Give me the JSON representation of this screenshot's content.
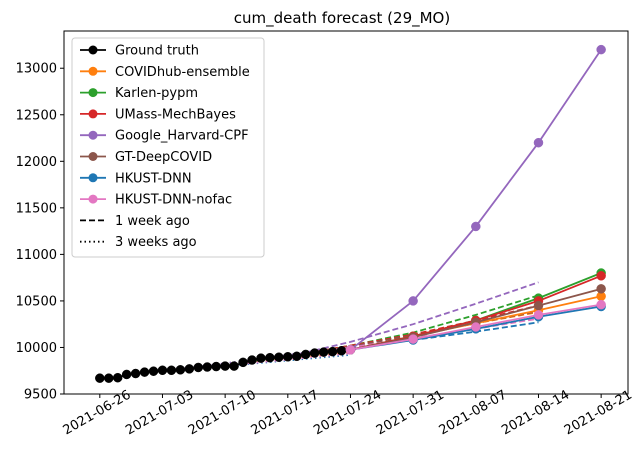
{
  "chart_data": {
    "type": "line",
    "title": "cum_death forecast (29_MO)",
    "xlabel": "",
    "ylabel": "",
    "ylim": [
      9500,
      13400
    ],
    "xlim": [
      "2021-06-22",
      "2021-08-24"
    ],
    "x_ticks": [
      "2021-06-26",
      "2021-07-03",
      "2021-07-10",
      "2021-07-17",
      "2021-07-24",
      "2021-07-31",
      "2021-08-07",
      "2021-08-14",
      "2021-08-21"
    ],
    "y_ticks": [
      9500,
      10000,
      10500,
      11000,
      11500,
      12000,
      12500,
      13000
    ],
    "grid": false,
    "legend_position": "top-left",
    "ground_truth": {
      "name": "Ground truth",
      "color": "#000000",
      "x": [
        "2021-06-26",
        "2021-06-27",
        "2021-06-28",
        "2021-06-29",
        "2021-06-30",
        "2021-07-01",
        "2021-07-02",
        "2021-07-03",
        "2021-07-04",
        "2021-07-05",
        "2021-07-06",
        "2021-07-07",
        "2021-07-08",
        "2021-07-09",
        "2021-07-10",
        "2021-07-11",
        "2021-07-12",
        "2021-07-13",
        "2021-07-14",
        "2021-07-15",
        "2021-07-16",
        "2021-07-17",
        "2021-07-18",
        "2021-07-19",
        "2021-07-20",
        "2021-07-21",
        "2021-07-22",
        "2021-07-23",
        "2021-07-24"
      ],
      "y": [
        9670,
        9670,
        9675,
        9710,
        9720,
        9735,
        9745,
        9755,
        9755,
        9760,
        9770,
        9785,
        9790,
        9795,
        9800,
        9800,
        9840,
        9865,
        9885,
        9890,
        9895,
        9900,
        9905,
        9925,
        9940,
        9950,
        9955,
        9965,
        9975
      ]
    },
    "series": [
      {
        "name": "COVIDhub-ensemble",
        "color": "#ff7f0e",
        "x": [
          "2021-07-24",
          "2021-07-31",
          "2021-08-07",
          "2021-08-14",
          "2021-08-21"
        ],
        "y": [
          9975,
          10120,
          10260,
          10400,
          10550
        ],
        "one_week": {
          "x": [
            "2021-07-17",
            "2021-07-24",
            "2021-07-31",
            "2021-08-07",
            "2021-08-14"
          ],
          "y": [
            9900,
            10020,
            10140,
            10260,
            10380
          ]
        }
      },
      {
        "name": "Karlen-pypm",
        "color": "#2ca02c",
        "x": [
          "2021-07-24",
          "2021-07-31",
          "2021-08-07",
          "2021-08-14",
          "2021-08-21"
        ],
        "y": [
          9975,
          10120,
          10290,
          10530,
          10800
        ],
        "one_week": {
          "x": [
            "2021-07-17",
            "2021-07-24",
            "2021-07-31",
            "2021-08-07",
            "2021-08-14"
          ],
          "y": [
            9900,
            10020,
            10160,
            10350,
            10560
          ]
        }
      },
      {
        "name": "UMass-MechBayes",
        "color": "#d62728",
        "x": [
          "2021-07-24",
          "2021-07-31",
          "2021-08-07",
          "2021-08-14",
          "2021-08-21"
        ],
        "y": [
          9975,
          10120,
          10290,
          10500,
          10770
        ],
        "one_week": {
          "x": [
            "2021-07-17",
            "2021-07-24",
            "2021-07-31",
            "2021-08-07",
            "2021-08-14"
          ],
          "y": [
            9900,
            10020,
            10140,
            10290,
            10450
          ]
        }
      },
      {
        "name": "Google_Harvard-CPF",
        "color": "#9467bd",
        "x": [
          "2021-07-24",
          "2021-07-31",
          "2021-08-07",
          "2021-08-14",
          "2021-08-21"
        ],
        "y": [
          9975,
          10500,
          11300,
          12200,
          13200
        ],
        "one_week": {
          "x": [
            "2021-07-17",
            "2021-07-24",
            "2021-07-31",
            "2021-08-07",
            "2021-08-14"
          ],
          "y": [
            9900,
            10060,
            10250,
            10470,
            10700
          ]
        }
      },
      {
        "name": "GT-DeepCOVID",
        "color": "#8c564b",
        "x": [
          "2021-07-24",
          "2021-07-31",
          "2021-08-07",
          "2021-08-14",
          "2021-08-21"
        ],
        "y": [
          9975,
          10110,
          10270,
          10450,
          10630
        ],
        "one_week": {
          "x": [
            "2021-07-17",
            "2021-07-24",
            "2021-07-31",
            "2021-08-07",
            "2021-08-14"
          ],
          "y": [
            9900,
            10010,
            10130,
            10260,
            10390
          ]
        }
      },
      {
        "name": "HKUST-DNN",
        "color": "#1f77b4",
        "x": [
          "2021-07-24",
          "2021-07-31",
          "2021-08-07",
          "2021-08-14",
          "2021-08-21"
        ],
        "y": [
          9975,
          10080,
          10200,
          10330,
          10440
        ],
        "one_week": {
          "x": [
            "2021-07-17",
            "2021-07-24",
            "2021-07-31",
            "2021-08-07",
            "2021-08-14"
          ],
          "y": [
            9900,
            9990,
            10080,
            10170,
            10270
          ]
        }
      },
      {
        "name": "HKUST-DNN-nofac",
        "color": "#e377c2",
        "x": [
          "2021-07-24",
          "2021-07-31",
          "2021-08-07",
          "2021-08-14",
          "2021-08-21"
        ],
        "y": [
          9975,
          10090,
          10220,
          10350,
          10460
        ],
        "one_week": {
          "x": [
            "2021-07-17",
            "2021-07-24",
            "2021-07-31",
            "2021-08-07",
            "2021-08-14"
          ],
          "y": [
            9900,
            10000,
            10100,
            10200,
            10310
          ]
        }
      }
    ],
    "three_week": [
      {
        "color": "#ff7f0e",
        "x": [
          "2021-07-03",
          "2021-07-10",
          "2021-07-17",
          "2021-07-24"
        ],
        "y": [
          9755,
          9810,
          9880,
          9950
        ]
      },
      {
        "color": "#2ca02c",
        "x": [
          "2021-07-03",
          "2021-07-10",
          "2021-07-17",
          "2021-07-24"
        ],
        "y": [
          9755,
          9820,
          9900,
          9980
        ]
      },
      {
        "color": "#9467bd",
        "x": [
          "2021-07-03",
          "2021-07-10",
          "2021-07-17",
          "2021-07-24"
        ],
        "y": [
          9755,
          9830,
          9920,
          10010
        ]
      },
      {
        "color": "#1f77b4",
        "x": [
          "2021-07-03",
          "2021-07-10",
          "2021-07-17",
          "2021-07-24"
        ],
        "y": [
          9755,
          9800,
          9860,
          9920
        ]
      },
      {
        "color": "#e377c2",
        "x": [
          "2021-07-03",
          "2021-07-10",
          "2021-07-17",
          "2021-07-24"
        ],
        "y": [
          9755,
          9805,
          9870,
          9935
        ]
      }
    ],
    "legend_extra": [
      {
        "label": "1 week ago",
        "style": "dashed"
      },
      {
        "label": "3 weeks ago",
        "style": "dotted"
      }
    ]
  }
}
